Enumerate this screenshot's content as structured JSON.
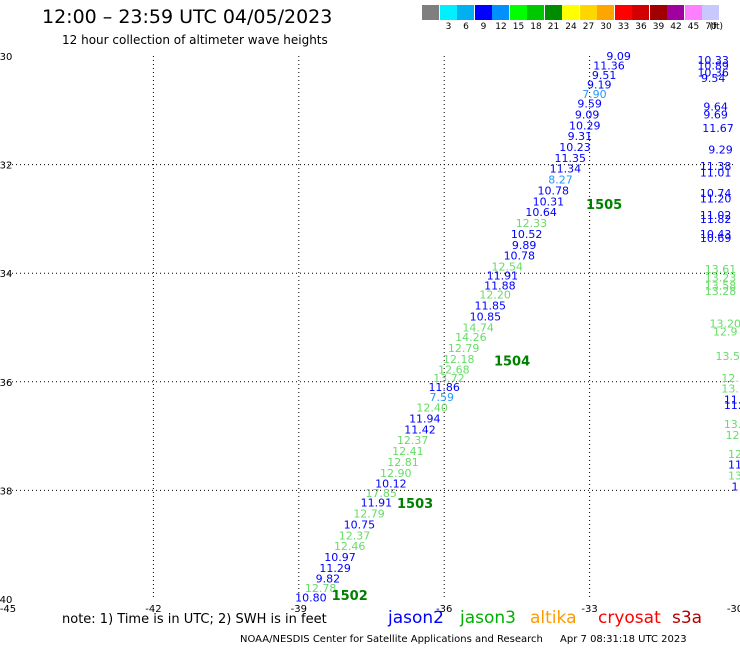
{
  "title": "12:00 – 23:59 UTC 04/05/2023",
  "subtitle": "12 hour collection of altimeter wave heights",
  "color_scale": {
    "unit": "(ft)",
    "swatches": [
      {
        "label": "",
        "color": "#7f7f7f"
      },
      {
        "label": "3",
        "color": "#00f0ff"
      },
      {
        "label": "6",
        "color": "#00b0f0"
      },
      {
        "label": "9",
        "color": "#0000ff"
      },
      {
        "label": "12",
        "color": "#0090ff"
      },
      {
        "label": "15",
        "color": "#00ff00"
      },
      {
        "label": "18",
        "color": "#00c800"
      },
      {
        "label": "21",
        "color": "#008c00"
      },
      {
        "label": "24",
        "color": "#ffff00"
      },
      {
        "label": "27",
        "color": "#ffd700"
      },
      {
        "label": "30",
        "color": "#ffa500"
      },
      {
        "label": "33",
        "color": "#ff0000"
      },
      {
        "label": "36",
        "color": "#d20000"
      },
      {
        "label": "39",
        "color": "#a00000"
      },
      {
        "label": "42",
        "color": "#a000a0"
      },
      {
        "label": "45",
        "color": "#ff80ff"
      },
      {
        "label": "70",
        "color": "#c8c8ff"
      }
    ]
  },
  "colors": {
    "jason2": "#0000ff",
    "jason3": "#00c000",
    "altika": "#ff9900",
    "cryosat": "#ff0000",
    "s3a": "#b00000",
    "pass_label": "#008000",
    "light_green": "#66dd66",
    "light_blue": "#2299ff"
  },
  "axes": {
    "lon_ticks": [
      {
        "value": -45,
        "label": "-45"
      },
      {
        "value": -42,
        "label": "-42"
      },
      {
        "value": -39,
        "label": "-39"
      },
      {
        "value": -36,
        "label": "-36"
      },
      {
        "value": -33,
        "label": "-33"
      },
      {
        "value": -30,
        "label": "-30"
      }
    ],
    "lat_ticks": [
      {
        "value": -30,
        "label": "-30"
      },
      {
        "value": -32,
        "label": "-32"
      },
      {
        "value": -34,
        "label": "-34"
      },
      {
        "value": -36,
        "label": "-36"
      },
      {
        "value": -38,
        "label": "-38"
      },
      {
        "value": -40,
        "label": "-40"
      }
    ],
    "lon_range": [
      -45,
      -30
    ],
    "lat_range": [
      -40,
      -30
    ]
  },
  "readings": [
    {
      "lon": -32.4,
      "lat": -30.07,
      "text": "9.09",
      "c": "jason2"
    },
    {
      "lon": -32.6,
      "lat": -30.25,
      "text": "11.36",
      "c": "jason2"
    },
    {
      "lon": -32.7,
      "lat": -30.42,
      "text": "9.51",
      "c": "jason2"
    },
    {
      "lon": -32.8,
      "lat": -30.6,
      "text": "9.19",
      "c": "jason2"
    },
    {
      "lon": -32.9,
      "lat": -30.77,
      "text": "7.90",
      "c": "light_blue"
    },
    {
      "lon": -33.0,
      "lat": -30.95,
      "text": "9.59",
      "c": "jason2"
    },
    {
      "lon": -33.05,
      "lat": -31.15,
      "text": "9.09",
      "c": "jason2"
    },
    {
      "lon": -33.1,
      "lat": -31.35,
      "text": "10.29",
      "c": "jason2"
    },
    {
      "lon": -33.2,
      "lat": -31.55,
      "text": "9.31",
      "c": "jason2"
    },
    {
      "lon": -33.3,
      "lat": -31.75,
      "text": "10.23",
      "c": "jason2"
    },
    {
      "lon": -33.4,
      "lat": -31.95,
      "text": "11.35",
      "c": "jason2"
    },
    {
      "lon": -33.5,
      "lat": -32.15,
      "text": "11.34",
      "c": "jason2"
    },
    {
      "lon": -33.6,
      "lat": -32.35,
      "text": "8.27",
      "c": "light_blue"
    },
    {
      "lon": -33.75,
      "lat": -32.55,
      "text": "10.78",
      "c": "jason2"
    },
    {
      "lon": -33.85,
      "lat": -32.75,
      "text": "10.31",
      "c": "jason2"
    },
    {
      "lon": -34.0,
      "lat": -32.95,
      "text": "10.64",
      "c": "jason2"
    },
    {
      "lon": -34.2,
      "lat": -33.15,
      "text": "12.33",
      "c": "light_green"
    },
    {
      "lon": -34.3,
      "lat": -33.35,
      "text": "10.52",
      "c": "jason2"
    },
    {
      "lon": -34.35,
      "lat": -33.55,
      "text": "9.89",
      "c": "jason2"
    },
    {
      "lon": -34.45,
      "lat": -33.75,
      "text": "10.78",
      "c": "jason2"
    },
    {
      "lon": -34.7,
      "lat": -33.95,
      "text": "12.54",
      "c": "light_green"
    },
    {
      "lon": -34.8,
      "lat": -34.12,
      "text": "11.91",
      "c": "jason2"
    },
    {
      "lon": -34.85,
      "lat": -34.3,
      "text": "11.88",
      "c": "jason2"
    },
    {
      "lon": -34.95,
      "lat": -34.47,
      "text": "12.20",
      "c": "light_green"
    },
    {
      "lon": -35.05,
      "lat": -34.67,
      "text": "11.85",
      "c": "jason2"
    },
    {
      "lon": -35.15,
      "lat": -34.87,
      "text": "10.85",
      "c": "jason2"
    },
    {
      "lon": -35.3,
      "lat": -35.07,
      "text": "14.74",
      "c": "light_green"
    },
    {
      "lon": -35.45,
      "lat": -35.25,
      "text": "14.26",
      "c": "light_green"
    },
    {
      "lon": -35.6,
      "lat": -35.45,
      "text": "12.79",
      "c": "light_green"
    },
    {
      "lon": -35.7,
      "lat": -35.65,
      "text": "12.18",
      "c": "light_green"
    },
    {
      "lon": -35.8,
      "lat": -35.85,
      "text": "12.68",
      "c": "light_green"
    },
    {
      "lon": -35.9,
      "lat": -36.0,
      "text": "13.72",
      "c": "light_green"
    },
    {
      "lon": -36.0,
      "lat": -36.17,
      "text": "11.86",
      "c": "jason2"
    },
    {
      "lon": -36.05,
      "lat": -36.35,
      "text": "7.59",
      "c": "light_blue"
    },
    {
      "lon": -36.25,
      "lat": -36.55,
      "text": "12.40",
      "c": "light_green"
    },
    {
      "lon": -36.4,
      "lat": -36.75,
      "text": "11.94",
      "c": "jason2"
    },
    {
      "lon": -36.5,
      "lat": -36.95,
      "text": "11.42",
      "c": "jason2"
    },
    {
      "lon": -36.65,
      "lat": -37.15,
      "text": "12.37",
      "c": "light_green"
    },
    {
      "lon": -36.75,
      "lat": -37.35,
      "text": "12.41",
      "c": "light_green"
    },
    {
      "lon": -36.85,
      "lat": -37.55,
      "text": "12.81",
      "c": "light_green"
    },
    {
      "lon": -37.0,
      "lat": -37.75,
      "text": "12.90",
      "c": "light_green"
    },
    {
      "lon": -37.1,
      "lat": -37.95,
      "text": "10.12",
      "c": "jason2"
    },
    {
      "lon": -37.3,
      "lat": -38.12,
      "text": "17.85",
      "c": "light_green"
    },
    {
      "lon": -37.4,
      "lat": -38.3,
      "text": "11.91",
      "c": "jason2"
    },
    {
      "lon": -37.55,
      "lat": -38.5,
      "text": "12.79",
      "c": "light_green"
    },
    {
      "lon": -37.75,
      "lat": -38.7,
      "text": "10.75",
      "c": "jason2"
    },
    {
      "lon": -37.85,
      "lat": -38.9,
      "text": "12.37",
      "c": "light_green"
    },
    {
      "lon": -37.95,
      "lat": -39.1,
      "text": "12.46",
      "c": "light_green"
    },
    {
      "lon": -38.15,
      "lat": -39.3,
      "text": "10.97",
      "c": "jason2"
    },
    {
      "lon": -38.25,
      "lat": -39.5,
      "text": "11.29",
      "c": "jason2"
    },
    {
      "lon": -38.4,
      "lat": -39.7,
      "text": "9.82",
      "c": "jason2"
    },
    {
      "lon": -38.55,
      "lat": -39.87,
      "text": "12.78",
      "c": "light_green"
    },
    {
      "lon": -38.75,
      "lat": -40.05,
      "text": "10.80",
      "c": "jason2"
    },
    {
      "lon": -30.45,
      "lat": -30.15,
      "text": "10.33",
      "c": "jason2"
    },
    {
      "lon": -30.45,
      "lat": -30.25,
      "text": "10.89",
      "c": "jason2"
    },
    {
      "lon": -30.45,
      "lat": -30.38,
      "text": "10.36",
      "c": "jason2"
    },
    {
      "lon": -30.45,
      "lat": -30.48,
      "text": "9.54",
      "c": "jason2"
    },
    {
      "lon": -30.4,
      "lat": -31.0,
      "text": "9.64",
      "c": "jason2"
    },
    {
      "lon": -30.4,
      "lat": -31.15,
      "text": "9.69",
      "c": "jason2"
    },
    {
      "lon": -30.35,
      "lat": -31.4,
      "text": "11.67",
      "c": "jason2"
    },
    {
      "lon": -30.3,
      "lat": -31.8,
      "text": "9.29",
      "c": "jason2"
    },
    {
      "lon": -30.4,
      "lat": -32.1,
      "text": "11.38",
      "c": "jason2"
    },
    {
      "lon": -30.4,
      "lat": -32.22,
      "text": "11.01",
      "c": "jason2"
    },
    {
      "lon": -30.4,
      "lat": -32.6,
      "text": "10.74",
      "c": "jason2"
    },
    {
      "lon": -30.4,
      "lat": -32.7,
      "text": "11.20",
      "c": "jason2"
    },
    {
      "lon": -30.4,
      "lat": -33.0,
      "text": "11.02",
      "c": "jason2"
    },
    {
      "lon": -30.4,
      "lat": -33.08,
      "text": "11.82",
      "c": "jason2"
    },
    {
      "lon": -30.4,
      "lat": -33.35,
      "text": "10.43",
      "c": "jason2"
    },
    {
      "lon": -30.4,
      "lat": -33.43,
      "text": "10.69",
      "c": "jason2"
    },
    {
      "lon": -30.3,
      "lat": -34.0,
      "text": "13.61",
      "c": "light_green"
    },
    {
      "lon": -30.3,
      "lat": -34.15,
      "text": "13.23",
      "c": "light_green"
    },
    {
      "lon": -30.3,
      "lat": -34.3,
      "text": "13.58",
      "c": "light_green"
    },
    {
      "lon": -30.3,
      "lat": -34.4,
      "text": "13.28",
      "c": "light_green"
    },
    {
      "lon": -30.2,
      "lat": -35.0,
      "text": "13.20",
      "c": "light_green"
    },
    {
      "lon": -30.2,
      "lat": -35.15,
      "text": "12.9",
      "c": "light_green"
    },
    {
      "lon": -30.15,
      "lat": -35.6,
      "text": "13.5",
      "c": "light_green"
    },
    {
      "lon": -30.1,
      "lat": -36.0,
      "text": "12.",
      "c": "light_green"
    },
    {
      "lon": -30.1,
      "lat": -36.2,
      "text": "13.",
      "c": "light_green"
    },
    {
      "lon": -30.05,
      "lat": -36.4,
      "text": "11.",
      "c": "jason2"
    },
    {
      "lon": -30.05,
      "lat": -36.5,
      "text": "11.",
      "c": "jason2"
    },
    {
      "lon": -30.05,
      "lat": -36.85,
      "text": "13.",
      "c": "light_green"
    },
    {
      "lon": -30.05,
      "lat": -37.05,
      "text": "12",
      "c": "light_green"
    },
    {
      "lon": -30.0,
      "lat": -37.4,
      "text": "12",
      "c": "light_green"
    },
    {
      "lon": -30.0,
      "lat": -37.6,
      "text": "11",
      "c": "jason2"
    },
    {
      "lon": -30.0,
      "lat": -37.8,
      "text": "13",
      "c": "light_green"
    },
    {
      "lon": -30.0,
      "lat": -38.0,
      "text": "1",
      "c": "jason2"
    }
  ],
  "pass_labels": [
    {
      "lon": -32.7,
      "lat": -32.82,
      "text": "1505"
    },
    {
      "lon": -34.6,
      "lat": -35.7,
      "text": "1504"
    },
    {
      "lon": -36.6,
      "lat": -38.32,
      "text": "1503"
    },
    {
      "lon": -37.95,
      "lat": -40.02,
      "text": "1502"
    }
  ],
  "note": "note:  1) Time is in UTC;  2) SWH is in feet",
  "satellites": [
    {
      "name": "jason2",
      "color": "#0000ff"
    },
    {
      "name": "jason3",
      "color": "#00b000"
    },
    {
      "name": "altika",
      "color": "#ff9900"
    },
    {
      "name": "cryosat",
      "color": "#ff0000"
    },
    {
      "name": "s3a",
      "color": "#b00000"
    }
  ],
  "footer": {
    "credit": "NOAA/NESDIS Center for Satellite Applications and Research",
    "timestamp": "Apr  7 08:31:18 UTC 2023"
  }
}
